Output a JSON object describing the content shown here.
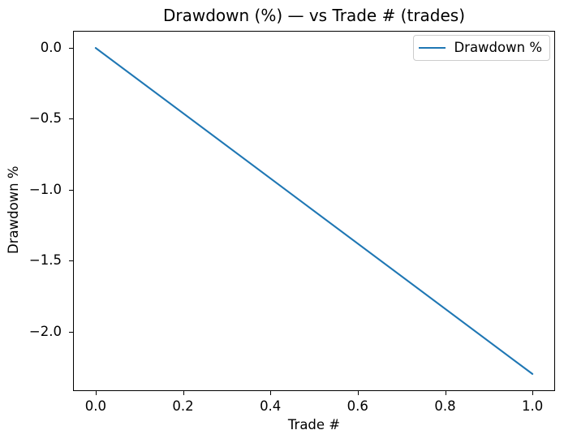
{
  "chart_data": {
    "type": "line",
    "title": "Drawdown (%) — vs Trade # (trades)",
    "xlabel": "Trade #",
    "ylabel": "Drawdown %",
    "xlim": [
      -0.05,
      1.05
    ],
    "ylim": [
      -2.415,
      0.115
    ],
    "xticks": [
      0.0,
      0.2,
      0.4,
      0.6,
      0.8,
      1.0
    ],
    "xtick_labels": [
      "0.0",
      "0.2",
      "0.4",
      "0.6",
      "0.8",
      "1.0"
    ],
    "yticks": [
      0.0,
      -0.5,
      -1.0,
      -1.5,
      -2.0
    ],
    "ytick_labels": [
      "0.0",
      "−0.5",
      "−1.0",
      "−1.5",
      "−2.0"
    ],
    "grid": false,
    "legend": {
      "position": "upper right",
      "entries": [
        {
          "label": "Drawdown %",
          "color": "#1f77b4"
        }
      ]
    },
    "series": [
      {
        "name": "Drawdown %",
        "color": "#1f77b4",
        "x": [
          0.0,
          1.0
        ],
        "y": [
          0.0,
          -2.3
        ]
      }
    ],
    "colors": {
      "line": "#1f77b4",
      "spine": "#000000",
      "legend_border": "#cccccc",
      "background": "#ffffff",
      "text": "#000000"
    }
  }
}
